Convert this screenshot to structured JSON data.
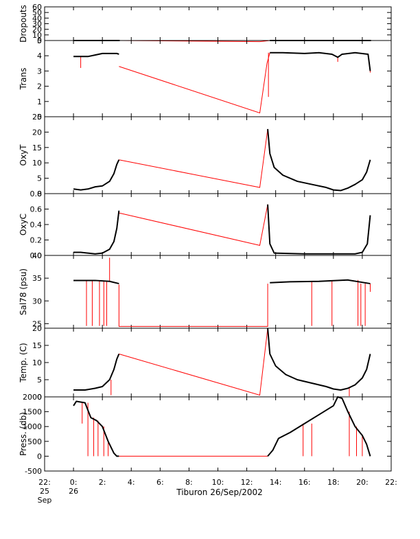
{
  "chart_data": {
    "type": "line",
    "xlabel": "Tiburon 26/Sep/2002",
    "x_unit": "hour",
    "xlim": [
      22,
      46
    ],
    "x_ticks": [
      {
        "x": 22,
        "label": "22:",
        "sub": [
          "25",
          "Sep"
        ]
      },
      {
        "x": 24,
        "label": "0:",
        "sub": [
          "26"
        ]
      },
      {
        "x": 26,
        "label": "2:",
        "sub": []
      },
      {
        "x": 28,
        "label": "4:",
        "sub": []
      },
      {
        "x": 30,
        "label": "6:",
        "sub": []
      },
      {
        "x": 32,
        "label": "8:",
        "sub": []
      },
      {
        "x": 34,
        "label": "10:",
        "sub": []
      },
      {
        "x": 36,
        "label": "12:",
        "sub": []
      },
      {
        "x": 38,
        "label": "14:",
        "sub": []
      },
      {
        "x": 40,
        "label": "16:",
        "sub": []
      },
      {
        "x": 42,
        "label": "18:",
        "sub": []
      },
      {
        "x": 44,
        "label": "20:",
        "sub": []
      },
      {
        "x": 46,
        "label": "22:",
        "sub": []
      }
    ],
    "colors": {
      "data": "#000000",
      "gap": "#ff0000"
    },
    "panels": [
      {
        "ylabel": "Dropouts",
        "ylim": [
          0,
          60
        ],
        "yticks": [
          0,
          10,
          20,
          30,
          40,
          50,
          60
        ],
        "ytick_labels": [
          "0",
          "10",
          "20",
          "30",
          "40",
          "50",
          "60"
        ],
        "segments": [
          [
            [
              24,
              0
            ],
            [
              26,
              0
            ],
            [
              27.2,
              0
            ]
          ],
          [
            [
              37.6,
              0
            ],
            [
              40,
              0
            ],
            [
              43,
              0
            ],
            [
              44.6,
              0
            ]
          ]
        ],
        "gap": [
          [
            27.2,
            0
          ],
          [
            36.9,
            -2
          ],
          [
            37.6,
            0
          ]
        ],
        "spikes": []
      },
      {
        "ylabel": "Trans",
        "ylim": [
          0,
          5
        ],
        "yticks": [
          0,
          1,
          2,
          3,
          4,
          5
        ],
        "ytick_labels": [
          "0",
          "1",
          "2",
          "3",
          "4",
          "5"
        ],
        "segments": [
          [
            [
              24,
              3.95
            ],
            [
              25,
              3.95
            ],
            [
              25.5,
              4.05
            ],
            [
              26,
              4.15
            ],
            [
              27,
              4.15
            ],
            [
              27.15,
              4.1
            ]
          ],
          [
            [
              37.6,
              4.2
            ],
            [
              38.5,
              4.2
            ],
            [
              40,
              4.15
            ],
            [
              41,
              4.2
            ],
            [
              41.9,
              4.1
            ],
            [
              42.3,
              3.9
            ],
            [
              42.6,
              4.1
            ],
            [
              43.5,
              4.2
            ],
            [
              44.4,
              4.1
            ],
            [
              44.55,
              3.0
            ]
          ]
        ],
        "gap": [
          [
            27.15,
            3.3
          ],
          [
            36.9,
            0.25
          ],
          [
            37.4,
            3.5
          ],
          [
            37.6,
            4.2
          ]
        ],
        "spikes": [
          [
            24.5,
            3.2
          ],
          [
            37.5,
            1.3
          ],
          [
            42.3,
            3.6
          ],
          [
            44.55,
            2.9
          ]
        ]
      },
      {
        "ylabel": "OxyT",
        "ylim": [
          0,
          25
        ],
        "yticks": [
          0,
          5,
          10,
          15,
          20,
          25
        ],
        "ytick_labels": [
          "0",
          "5",
          "10",
          "15",
          "20",
          "25"
        ],
        "segments": [
          [
            [
              24,
              1.5
            ],
            [
              24.5,
              1.2
            ],
            [
              25,
              1.5
            ],
            [
              25.5,
              2.2
            ],
            [
              26,
              2.5
            ],
            [
              26.5,
              4
            ],
            [
              26.8,
              6.5
            ],
            [
              27,
              9.5
            ],
            [
              27.15,
              11
            ]
          ],
          [
            [
              37.45,
              21
            ],
            [
              37.6,
              13
            ],
            [
              37.9,
              8.5
            ],
            [
              38.5,
              6
            ],
            [
              39.5,
              4
            ],
            [
              40.5,
              3
            ],
            [
              41.5,
              2
            ],
            [
              42,
              1.2
            ],
            [
              42.5,
              1
            ],
            [
              43,
              1.8
            ],
            [
              43.5,
              3
            ],
            [
              44,
              4.5
            ],
            [
              44.3,
              7
            ],
            [
              44.55,
              11
            ]
          ]
        ],
        "gap": [
          [
            27.15,
            11
          ],
          [
            36.9,
            2
          ],
          [
            37.45,
            21
          ]
        ],
        "spikes": []
      },
      {
        "ylabel": "OxyC",
        "ylim": [
          0,
          0.8
        ],
        "yticks": [
          0,
          0.2,
          0.4,
          0.6,
          0.8
        ],
        "ytick_labels": [
          "0.0",
          "0.2",
          "0.4",
          "0.6",
          "0.8"
        ],
        "segments": [
          [
            [
              24,
              0.04
            ],
            [
              24.5,
              0.04
            ],
            [
              25,
              0.03
            ],
            [
              25.5,
              0.02
            ],
            [
              26,
              0.03
            ],
            [
              26.5,
              0.08
            ],
            [
              26.8,
              0.18
            ],
            [
              27,
              0.35
            ],
            [
              27.15,
              0.58
            ]
          ],
          [
            [
              37.45,
              0.66
            ],
            [
              37.6,
              0.15
            ],
            [
              37.9,
              0.03
            ],
            [
              40,
              0.02
            ],
            [
              42,
              0.02
            ],
            [
              43.5,
              0.02
            ],
            [
              44,
              0.04
            ],
            [
              44.35,
              0.15
            ],
            [
              44.55,
              0.52
            ]
          ]
        ],
        "gap": [
          [
            27.15,
            0.55
          ],
          [
            36.9,
            0.13
          ],
          [
            37.45,
            0.66
          ]
        ],
        "spikes": []
      },
      {
        "ylabel": "Sal78 (psu)",
        "ylim": [
          24,
          40
        ],
        "yticks": [
          25,
          30,
          35,
          40
        ],
        "ytick_labels": [
          "25",
          "30",
          "35",
          "40"
        ],
        "segments": [
          [
            [
              24,
              34.5
            ],
            [
              25.5,
              34.5
            ],
            [
              26.5,
              34.3
            ],
            [
              27.15,
              33.8
            ]
          ],
          [
            [
              37.6,
              34
            ],
            [
              39,
              34.2
            ],
            [
              41,
              34.3
            ],
            [
              43,
              34.6
            ],
            [
              44.55,
              33.8
            ]
          ]
        ],
        "gap": [
          [
            27.15,
            33.6
          ],
          [
            27.15,
            24.4
          ],
          [
            37.45,
            24.4
          ],
          [
            37.45,
            33.8
          ]
        ],
        "spikes": [
          [
            24.9,
            24.5
          ],
          [
            25.3,
            24.5
          ],
          [
            25.8,
            24.5
          ],
          [
            26.1,
            24.5
          ],
          [
            26.3,
            24.5
          ],
          [
            26.5,
            39.5
          ],
          [
            40.5,
            24.5
          ],
          [
            41.9,
            24.5
          ],
          [
            43.7,
            24.5
          ],
          [
            43.9,
            24.5
          ],
          [
            44.2,
            24.5
          ],
          [
            44.55,
            32
          ]
        ]
      },
      {
        "ylabel": "Temp. (C)",
        "ylim": [
          0,
          20
        ],
        "yticks": [
          0,
          5,
          10,
          15,
          20
        ],
        "ytick_labels": [
          "0",
          "5",
          "10",
          "15",
          "20"
        ],
        "segments": [
          [
            [
              24,
              2
            ],
            [
              24.8,
              2
            ],
            [
              25.5,
              2.5
            ],
            [
              26,
              3
            ],
            [
              26.5,
              5
            ],
            [
              26.8,
              8
            ],
            [
              27,
              11
            ],
            [
              27.15,
              12.5
            ]
          ],
          [
            [
              37.45,
              20
            ],
            [
              37.6,
              12.5
            ],
            [
              38,
              9
            ],
            [
              38.7,
              6.5
            ],
            [
              39.5,
              5
            ],
            [
              40.5,
              4
            ],
            [
              41.5,
              3
            ],
            [
              42,
              2.3
            ],
            [
              42.5,
              2
            ],
            [
              43,
              2.5
            ],
            [
              43.5,
              3.5
            ],
            [
              44,
              5.5
            ],
            [
              44.3,
              8
            ],
            [
              44.55,
              12.5
            ]
          ]
        ],
        "gap": [
          [
            27.15,
            12.5
          ],
          [
            36.9,
            0.5
          ],
          [
            37.45,
            20
          ]
        ],
        "spikes": [
          [
            26.6,
            0.5
          ],
          [
            43.1,
            0.2
          ]
        ]
      },
      {
        "ylabel": "Press. (db)",
        "ylim": [
          -500,
          2000
        ],
        "yticks": [
          -500,
          0,
          500,
          1000,
          1500,
          2000
        ],
        "ytick_labels": [
          "-500",
          "0",
          "500",
          "1000",
          "1500",
          "2000"
        ],
        "segments": [
          [
            [
              24,
              1700
            ],
            [
              24.2,
              1850
            ],
            [
              24.8,
              1800
            ],
            [
              25.2,
              1300
            ],
            [
              25.6,
              1200
            ],
            [
              26,
              1000
            ],
            [
              26.4,
              500
            ],
            [
              26.8,
              100
            ],
            [
              27,
              0
            ],
            [
              27.15,
              0
            ]
          ],
          [
            [
              37.45,
              0
            ],
            [
              37.8,
              200
            ],
            [
              38.2,
              600
            ],
            [
              39,
              800
            ],
            [
              40,
              1100
            ],
            [
              41,
              1400
            ],
            [
              42,
              1700
            ],
            [
              42.3,
              2000
            ],
            [
              42.6,
              1950
            ],
            [
              43,
              1500
            ],
            [
              43.5,
              1000
            ],
            [
              44,
              700
            ],
            [
              44.3,
              400
            ],
            [
              44.55,
              0
            ]
          ]
        ],
        "gap": [
          [
            27.15,
            0
          ],
          [
            37.45,
            0
          ]
        ],
        "spikes": [
          [
            24.6,
            1100
          ],
          [
            25,
            0
          ],
          [
            25.4,
            0
          ],
          [
            25.7,
            0
          ],
          [
            26.1,
            0
          ],
          [
            26.4,
            0
          ],
          [
            39.9,
            0
          ],
          [
            40.5,
            0
          ],
          [
            43.1,
            0
          ],
          [
            43.6,
            0
          ],
          [
            44.0,
            0
          ]
        ]
      }
    ]
  }
}
